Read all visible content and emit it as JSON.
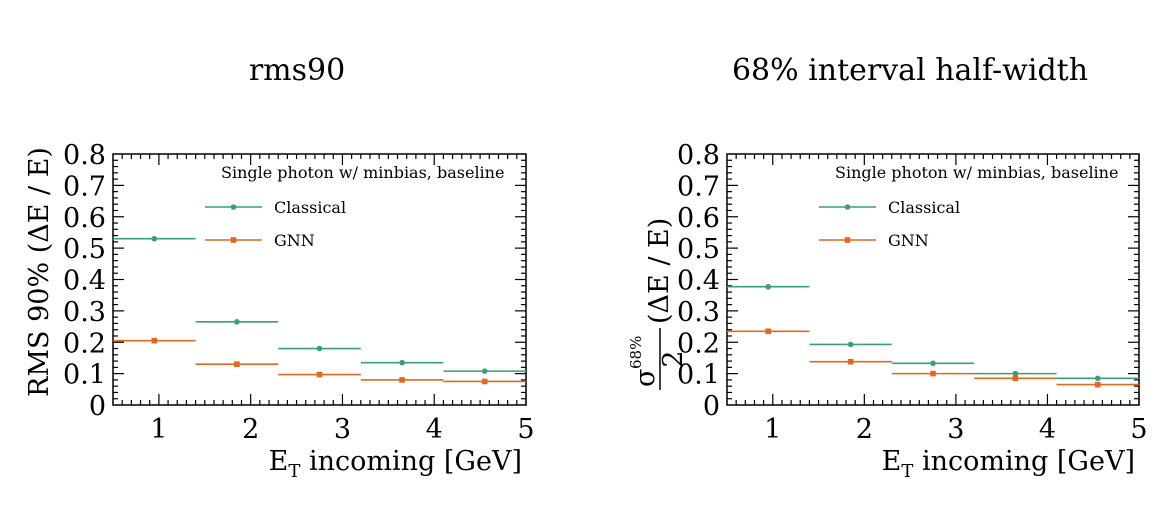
{
  "colors": {
    "classical": "#3a9e7a",
    "gnn": "#e06820",
    "axis": "#000000"
  },
  "chart_data": [
    {
      "type": "scatter",
      "title": "rms90",
      "xlabel_main": "E",
      "xlabel_sub": "T",
      "xlabel_rest": " incoming [GeV]",
      "ylabel": "RMS 90% (ΔE / E)",
      "xlim": [
        0.5,
        5.0
      ],
      "ylim": [
        0,
        0.8
      ],
      "xticks": [
        "1",
        "2",
        "3",
        "4",
        "5"
      ],
      "yticks": [
        "0",
        "0.1",
        "0.2",
        "0.3",
        "0.4",
        "0.5",
        "0.6",
        "0.7",
        "0.8"
      ],
      "annotation": "Single photon w/ minbias, baseline",
      "legend": {
        "placement": "top-right",
        "entries": [
          "Classical",
          "GNN"
        ]
      },
      "bin_edges": [
        0.5,
        1.4,
        2.3,
        3.2,
        4.1,
        5.0
      ],
      "series": [
        {
          "name": "Classical",
          "x": [
            0.95,
            1.85,
            2.75,
            3.65,
            4.55
          ],
          "y": [
            0.53,
            0.265,
            0.18,
            0.135,
            0.108
          ]
        },
        {
          "name": "GNN",
          "x": [
            0.95,
            1.85,
            2.75,
            3.65,
            4.55
          ],
          "y": [
            0.205,
            0.13,
            0.097,
            0.08,
            0.075
          ]
        }
      ]
    },
    {
      "type": "scatter",
      "title": "68% interval half-width",
      "xlabel_main": "E",
      "xlabel_sub": "T",
      "xlabel_rest": " incoming [GeV]",
      "ylabel_frac_sigma": "σ",
      "ylabel_frac_sup": "68%",
      "ylabel_frac_den": "2",
      "ylabel_rest": "(ΔE / E)",
      "xlim": [
        0.5,
        5.0
      ],
      "ylim": [
        0,
        0.8
      ],
      "xticks": [
        "1",
        "2",
        "3",
        "4",
        "5"
      ],
      "yticks": [
        "0",
        "0.1",
        "0.2",
        "0.3",
        "0.4",
        "0.5",
        "0.6",
        "0.7",
        "0.8"
      ],
      "annotation": "Single photon w/ minbias, baseline",
      "legend": {
        "placement": "top-right",
        "entries": [
          "Classical",
          "GNN"
        ]
      },
      "bin_edges": [
        0.5,
        1.4,
        2.3,
        3.2,
        4.1,
        5.0
      ],
      "series": [
        {
          "name": "Classical",
          "x": [
            0.95,
            1.85,
            2.75,
            3.65,
            4.55
          ],
          "y": [
            0.377,
            0.193,
            0.133,
            0.1,
            0.085
          ]
        },
        {
          "name": "GNN",
          "x": [
            0.95,
            1.85,
            2.75,
            3.65,
            4.55
          ],
          "y": [
            0.235,
            0.138,
            0.1,
            0.085,
            0.065
          ]
        }
      ]
    }
  ]
}
